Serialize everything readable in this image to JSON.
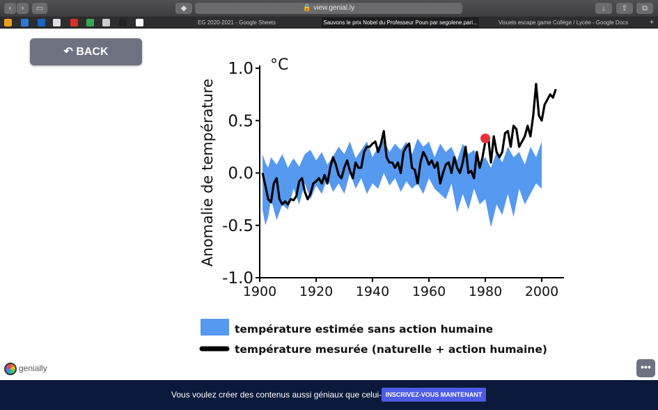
{
  "browser": {
    "url": "view.genial.ly",
    "tabs": [
      "EG 2020-2021 - Google Sheets",
      "Sauvons le prix Nobel du Professeur Poun par segolene.pari...",
      "Visuels escape game Collège / Lycée - Google Docs"
    ],
    "new_tab_label": "+"
  },
  "page": {
    "back_label": "BACK",
    "logo_text": "genially",
    "more_label": "•••"
  },
  "footer": {
    "promo_text": "Vous voulez créer des contenus aussi géniaux que celui-ci ?",
    "cta_label": "INSCRIVEZ-VOUS MAINTENANT"
  },
  "colors": {
    "band": "#5599f0",
    "line": "#000000",
    "marker": "#e8303a",
    "footer_bg": "#0b1a3a",
    "cta": "#4d5be6"
  },
  "chart_data": {
    "type": "line",
    "ylabel": "Anomalie de température",
    "unit": "°C",
    "xlim": [
      1900,
      2005
    ],
    "ylim": [
      -1.0,
      1.0
    ],
    "x_ticks": [
      1900,
      1920,
      1940,
      1960,
      1980,
      2000
    ],
    "y_ticks": [
      1.0,
      0.5,
      0.0,
      -0.5,
      -1.0
    ],
    "y_tick_labels": [
      "1.0",
      "0.5",
      "0.0",
      "-0.5",
      "-1.0"
    ],
    "legend": [
      {
        "label": "température estimée sans action humaine",
        "kind": "band"
      },
      {
        "label": "température mesurée (naturelle + action humaine)",
        "kind": "line"
      }
    ],
    "band": {
      "x": [
        1901,
        1902,
        1903,
        1904,
        1906,
        1908,
        1910,
        1912,
        1914,
        1916,
        1918,
        1920,
        1922,
        1924,
        1926,
        1928,
        1930,
        1932,
        1934,
        1936,
        1938,
        1940,
        1942,
        1944,
        1946,
        1948,
        1950,
        1952,
        1954,
        1956,
        1958,
        1960,
        1962,
        1964,
        1966,
        1968,
        1970,
        1972,
        1974,
        1976,
        1978,
        1980,
        1982,
        1984,
        1986,
        1988,
        1990,
        1992,
        1994,
        1996,
        1998,
        2000
      ],
      "upper": [
        0.18,
        0.1,
        0.05,
        0.15,
        0.08,
        0.18,
        0.05,
        0.14,
        0.06,
        0.18,
        0.22,
        0.12,
        0.2,
        0.08,
        0.16,
        0.25,
        0.18,
        0.3,
        0.14,
        0.22,
        0.3,
        0.15,
        0.25,
        0.32,
        0.2,
        0.28,
        0.22,
        0.3,
        0.18,
        0.33,
        0.25,
        0.3,
        0.15,
        0.28,
        0.2,
        0.25,
        0.12,
        0.28,
        0.18,
        0.22,
        0.1,
        0.15,
        0.05,
        0.2,
        0.1,
        0.25,
        0.15,
        0.2,
        0.08,
        0.25,
        0.15,
        0.3
      ],
      "lower": [
        -0.35,
        -0.5,
        -0.42,
        -0.25,
        -0.45,
        -0.3,
        -0.35,
        -0.15,
        -0.3,
        -0.1,
        -0.25,
        -0.12,
        -0.2,
        -0.05,
        -0.18,
        -0.1,
        -0.2,
        0.0,
        -0.15,
        -0.05,
        -0.2,
        -0.1,
        -0.15,
        0.0,
        -0.12,
        -0.05,
        -0.18,
        -0.08,
        -0.15,
        -0.1,
        -0.2,
        -0.05,
        -0.15,
        -0.2,
        -0.25,
        -0.1,
        -0.38,
        -0.2,
        -0.35,
        -0.15,
        -0.3,
        -0.25,
        -0.52,
        -0.3,
        -0.4,
        -0.2,
        -0.42,
        -0.15,
        -0.3,
        -0.2,
        -0.1,
        -0.15
      ]
    },
    "series": [
      {
        "kind": "measured",
        "x": [
          1901,
          1902,
          1903,
          1904,
          1905,
          1906,
          1907,
          1908,
          1909,
          1910,
          1911,
          1912,
          1913,
          1914,
          1915,
          1916,
          1917,
          1918,
          1919,
          1920,
          1921,
          1922,
          1923,
          1924,
          1925,
          1926,
          1927,
          1928,
          1929,
          1930,
          1931,
          1932,
          1933,
          1934,
          1935,
          1936,
          1937,
          1938,
          1939,
          1940,
          1941,
          1942,
          1943,
          1944,
          1945,
          1946,
          1947,
          1948,
          1949,
          1950,
          1951,
          1952,
          1953,
          1954,
          1955,
          1956,
          1957,
          1958,
          1959,
          1960,
          1961,
          1962,
          1963,
          1964,
          1965,
          1966,
          1967,
          1968,
          1969,
          1970,
          1971,
          1972,
          1973,
          1974,
          1975,
          1976,
          1977,
          1978,
          1979,
          1980,
          1981,
          1982,
          1983,
          1984,
          1985,
          1986,
          1987,
          1988,
          1989,
          1990,
          1991,
          1992,
          1993,
          1994,
          1995,
          1996,
          1997,
          1998,
          1999,
          2000,
          2001,
          2002,
          2003,
          2004,
          2005
        ],
        "y": [
          0.0,
          -0.12,
          -0.25,
          -0.28,
          -0.1,
          -0.05,
          -0.25,
          -0.3,
          -0.27,
          -0.3,
          -0.25,
          -0.26,
          -0.22,
          -0.08,
          -0.05,
          -0.18,
          -0.25,
          -0.2,
          -0.1,
          -0.08,
          -0.05,
          -0.1,
          -0.02,
          -0.1,
          0.05,
          0.15,
          0.08,
          -0.02,
          -0.05,
          0.05,
          0.12,
          0.02,
          -0.05,
          0.1,
          0.05,
          0.05,
          0.2,
          0.25,
          0.25,
          0.28,
          0.3,
          0.2,
          0.28,
          0.4,
          0.15,
          0.1,
          0.1,
          0.05,
          0.1,
          0.0,
          0.2,
          0.25,
          0.28,
          0.05,
          0.03,
          -0.1,
          0.1,
          0.2,
          0.15,
          0.08,
          0.12,
          0.05,
          0.1,
          -0.1,
          0.0,
          0.08,
          0.1,
          0.0,
          0.15,
          0.05,
          0.0,
          0.1,
          0.25,
          0.0,
          0.02,
          -0.05,
          0.2,
          0.05,
          0.15,
          0.3,
          0.35,
          0.1,
          0.35,
          0.2,
          0.15,
          0.2,
          0.38,
          0.4,
          0.25,
          0.45,
          0.42,
          0.25,
          0.3,
          0.35,
          0.45,
          0.35,
          0.55,
          0.85,
          0.55,
          0.5,
          0.65,
          0.7,
          0.75,
          0.72,
          0.8
        ]
      }
    ],
    "marker": {
      "x": 1980,
      "y": 0.33
    }
  }
}
